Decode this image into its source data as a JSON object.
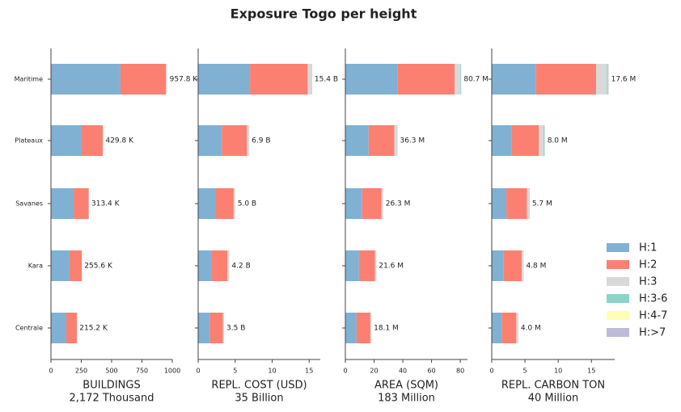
{
  "title": "Exposure Togo per height",
  "legend": [
    {
      "name": "H:1",
      "color": "#80b1d3"
    },
    {
      "name": "H:2",
      "color": "#fb8072"
    },
    {
      "name": "H:3",
      "color": "#d9d9d9"
    },
    {
      "name": "H:3-6",
      "color": "#8dd3c7"
    },
    {
      "name": "H:4-7",
      "color": "#ffffb3"
    },
    {
      "name": "H:>7",
      "color": "#bebada"
    }
  ],
  "chart_data": [
    {
      "type": "bar",
      "categories": [
        "Maritime",
        "Plateaux",
        "Savanes",
        "Kara",
        "Centrale"
      ],
      "xlabel": "BUILDINGS",
      "xlabel_sub": "2,172 Thousand",
      "xlim": [
        0,
        1000
      ],
      "xticks": [
        0,
        250,
        500,
        750,
        1000
      ],
      "series": [
        {
          "values": [
            573,
            253,
            187,
            153,
            127
          ]
        },
        {
          "values": [
            374,
            174,
            124,
            101,
            86.5
          ]
        },
        {
          "values": [
            9,
            2,
            1.8,
            1.2,
            1.2
          ]
        },
        {
          "values": [
            1,
            0.5,
            0.4,
            0.3,
            0.3
          ]
        },
        {
          "values": [
            0.5,
            0.2,
            0.1,
            0.05,
            0.1
          ]
        },
        {
          "values": [
            0.3,
            0.1,
            0.1,
            0.05,
            0.1
          ]
        }
      ],
      "totals": {
        "values": [
          957.8,
          429.8,
          313.4,
          255.6,
          215.2
        ],
        "value_labels": [
          "957.8 K",
          "429.8 K",
          "313.4 K",
          "255.6 K",
          "215.2 K"
        ]
      }
    },
    {
      "type": "bar",
      "xlabel": "REPL. COST (USD)",
      "xlabel_sub": "35 Billion",
      "xlim": [
        0,
        16.5
      ],
      "xticks": [
        0,
        5,
        10,
        15
      ],
      "series": [
        {
          "values": [
            7.0,
            3.2,
            2.3,
            1.85,
            1.55
          ]
        },
        {
          "values": [
            7.8,
            3.4,
            2.5,
            2.1,
            1.8
          ]
        },
        {
          "values": [
            0.5,
            0.25,
            0.15,
            0.2,
            0.12
          ]
        },
        {
          "values": [
            0.06,
            0.03,
            0.03,
            0.03,
            0.02
          ]
        },
        {
          "values": [
            0.02,
            0.01,
            0.01,
            0.01,
            0.005
          ]
        },
        {
          "values": [
            0.02,
            0.01,
            0.01,
            0.01,
            0.005
          ]
        }
      ],
      "totals": {
        "values": [
          15.4,
          6.9,
          5.0,
          4.2,
          3.5
        ],
        "value_labels": [
          "15.4 B",
          "6.9 B",
          "5.0 B",
          "4.2 B",
          "3.5 B"
        ]
      }
    },
    {
      "type": "bar",
      "xlabel": "AREA (SQM)",
      "xlabel_sub": "183 Million",
      "xlim": [
        0,
        85
      ],
      "xticks": [
        0,
        20,
        40,
        60,
        80
      ],
      "series": [
        {
          "values": [
            36.4,
            16.2,
            11.7,
            9.5,
            7.8
          ]
        },
        {
          "values": [
            39.7,
            17.9,
            13.5,
            11.1,
            9.6
          ]
        },
        {
          "values": [
            4,
            1.8,
            0.9,
            0.85,
            0.6
          ]
        },
        {
          "values": [
            0.4,
            0.3,
            0.15,
            0.1,
            0.07
          ]
        },
        {
          "values": [
            0.1,
            0.05,
            0.03,
            0.03,
            0.02
          ]
        },
        {
          "values": [
            0.1,
            0.05,
            0.02,
            0.02,
            0.01
          ]
        }
      ],
      "totals": {
        "values": [
          80.7,
          36.3,
          26.3,
          21.6,
          18.1
        ],
        "value_labels": [
          "80.7 M",
          "36.3 M",
          "26.3 M",
          "21.6 M",
          "18.1 M"
        ]
      }
    },
    {
      "type": "bar",
      "xlabel": "REPL. CARBON TON",
      "xlabel_sub": "40 Million",
      "xlim": [
        0,
        18.5
      ],
      "xticks": [
        0,
        5,
        10,
        15
      ],
      "series": [
        {
          "values": [
            6.6,
            3.0,
            2.2,
            1.8,
            1.5
          ]
        },
        {
          "values": [
            9.1,
            4.1,
            3.1,
            2.7,
            2.2
          ]
        },
        {
          "values": [
            1.6,
            0.7,
            0.3,
            0.25,
            0.25
          ]
        },
        {
          "values": [
            0.2,
            0.15,
            0.07,
            0.03,
            0.03
          ]
        },
        {
          "values": [
            0.05,
            0.03,
            0.02,
            0.01,
            0.01
          ]
        },
        {
          "values": [
            0.05,
            0.02,
            0.01,
            0.01,
            0.01
          ]
        }
      ],
      "totals": {
        "values": [
          17.6,
          8.0,
          5.7,
          4.8,
          4.0
        ],
        "value_labels": [
          "17.6 M",
          "8.0 M",
          "5.7 M",
          "4.8 M",
          "4.0 M"
        ]
      }
    }
  ]
}
